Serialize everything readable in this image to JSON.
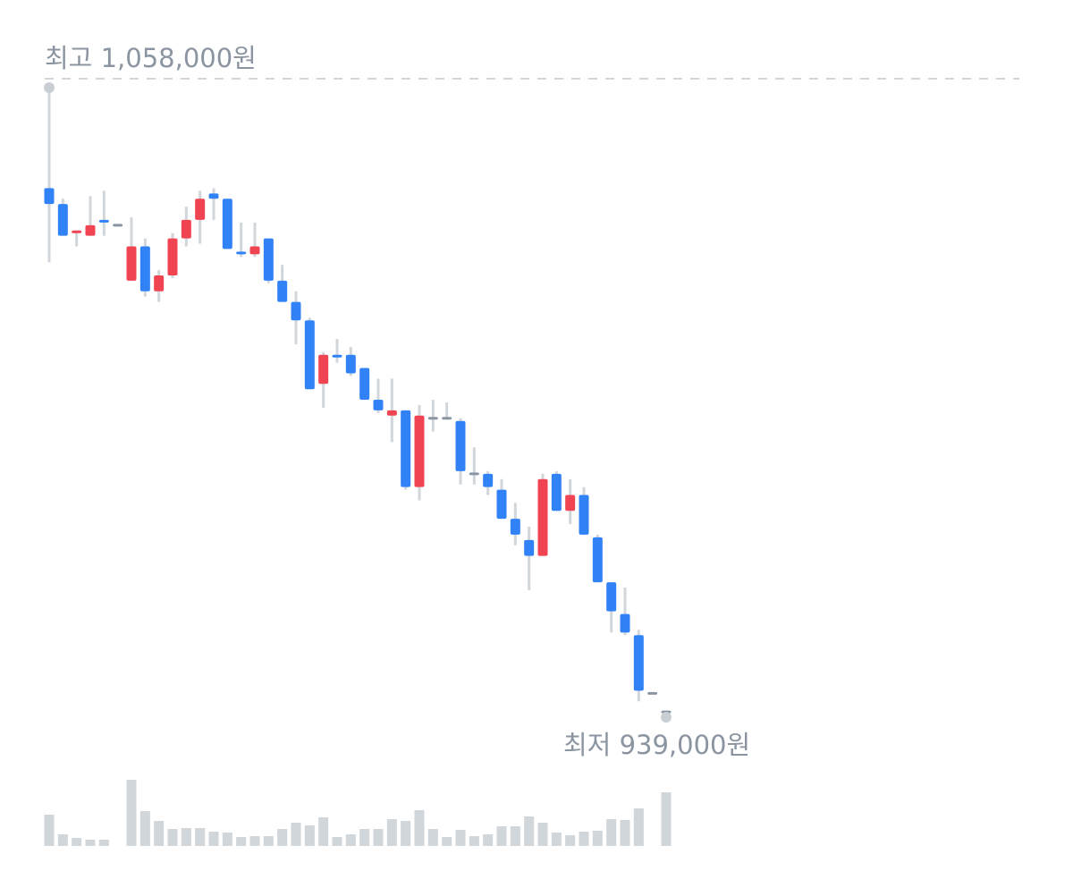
{
  "chart_data": {
    "type": "candlestick",
    "high_label": "최고 1,058,000원",
    "low_label": "최저 939,000원",
    "ylim": [
      939000,
      1058000
    ],
    "open": [
      1039000,
      1036000,
      1030500,
      1030000,
      1033000,
      1032000,
      1021500,
      1028000,
      1019500,
      1022500,
      1029500,
      1033000,
      1038000,
      1037000,
      1027000,
      1026500,
      1029500,
      1021500,
      1017500,
      1014000,
      1002000,
      1007500,
      1007500,
      1005000,
      999000,
      996000,
      997000,
      982500,
      995500,
      995500,
      995000,
      985000,
      985000,
      982000,
      976500,
      972500,
      969500,
      985000,
      978000,
      981000,
      973000,
      964500,
      958500,
      954500,
      943500,
      940000
    ],
    "high": [
      1058000,
      1037000,
      1031000,
      1037500,
      1038500,
      1032000,
      1033500,
      1029500,
      1023500,
      1030500,
      1035500,
      1038500,
      1039000,
      1037000,
      1032500,
      1032500,
      1029500,
      1024500,
      1019500,
      1014500,
      1008000,
      1010500,
      1009000,
      1005000,
      1003000,
      1003000,
      997000,
      998000,
      999000,
      998500,
      995500,
      990000,
      985500,
      984000,
      979500,
      975000,
      985000,
      985500,
      984000,
      982500,
      973500,
      964500,
      963500,
      955500,
      943500,
      940000
    ],
    "low": [
      1025000,
      1030000,
      1028000,
      1030000,
      1030000,
      1032000,
      1021500,
      1018500,
      1017500,
      1022000,
      1028000,
      1028500,
      1033000,
      1027500,
      1026000,
      1026000,
      1021000,
      1017500,
      1009500,
      1001000,
      997500,
      1006000,
      1003500,
      999000,
      996500,
      991000,
      982000,
      980000,
      993000,
      995500,
      983000,
      983000,
      981000,
      976500,
      971500,
      963000,
      969500,
      978000,
      975500,
      973500,
      964500,
      955000,
      954500,
      942000,
      943500,
      939000
    ],
    "close": [
      1036000,
      1030000,
      1031000,
      1032000,
      1032500,
      1032000,
      1028000,
      1019500,
      1022500,
      1029500,
      1033000,
      1037000,
      1037000,
      1027500,
      1026500,
      1028000,
      1021500,
      1017500,
      1014000,
      1001000,
      1007500,
      1007000,
      1004000,
      999000,
      997000,
      997000,
      982500,
      996000,
      995500,
      995500,
      985500,
      985000,
      982500,
      976500,
      973500,
      969500,
      984000,
      978000,
      981000,
      973500,
      964500,
      959000,
      955000,
      944000,
      943500,
      940000
    ],
    "volume": [
      35,
      13,
      9,
      7,
      7,
      0,
      74,
      39,
      28,
      19,
      20,
      20,
      16,
      15,
      10,
      11,
      11,
      19,
      26,
      23,
      32,
      10,
      13,
      19,
      19,
      30,
      28,
      40,
      19,
      10,
      18,
      11,
      13,
      22,
      22,
      33,
      26,
      15,
      12,
      16,
      17,
      30,
      29,
      42,
      0,
      60
    ],
    "up_color": "#f04452",
    "down_color": "#3182f6",
    "flat_color": "#8b95a1",
    "wick_color": "#d1d6db",
    "volume_color": "#d1d6db"
  }
}
